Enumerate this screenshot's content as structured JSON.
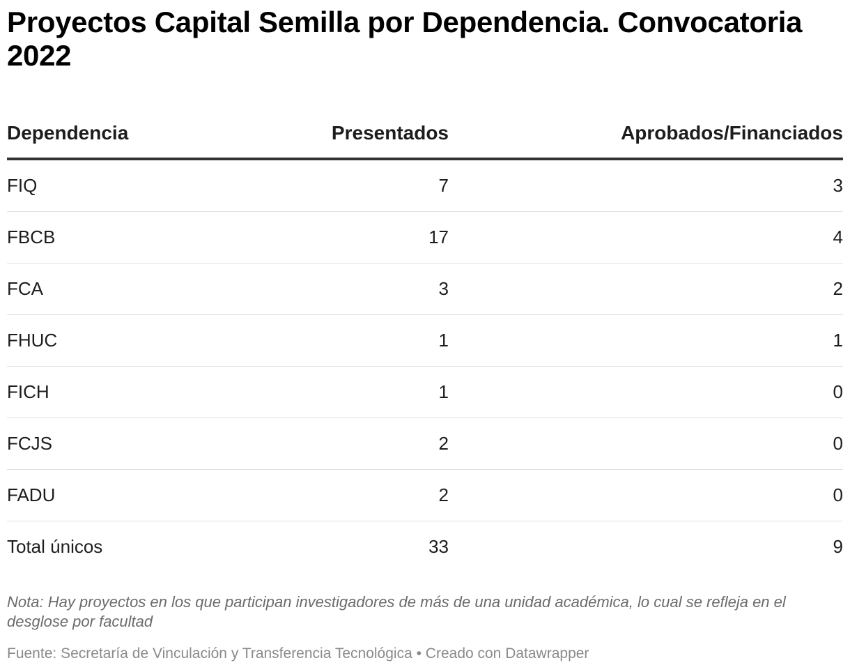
{
  "chart_data": {
    "type": "table",
    "title": "Proyectos Capital Semilla por Dependencia. Convocatoria 2022",
    "columns": [
      "Dependencia",
      "Presentados",
      "Aprobados/Financiados"
    ],
    "rows": [
      [
        "FIQ",
        7,
        3
      ],
      [
        "FBCB",
        17,
        4
      ],
      [
        "FCA",
        3,
        2
      ],
      [
        "FHUC",
        1,
        1
      ],
      [
        "FICH",
        1,
        0
      ],
      [
        "FCJS",
        2,
        0
      ],
      [
        "FADU",
        2,
        0
      ],
      [
        "Total únicos",
        33,
        9
      ]
    ],
    "notes": "Nota: Hay proyectos en los que participan investigadores de más de una unidad académica, lo cual se refleja en el desglose por facultad",
    "source_label": "Fuente:",
    "source": "Secretaría de Vinculación y Transferencia Tecnológica",
    "separator": "•",
    "byline": "Creado con Datawrapper"
  }
}
